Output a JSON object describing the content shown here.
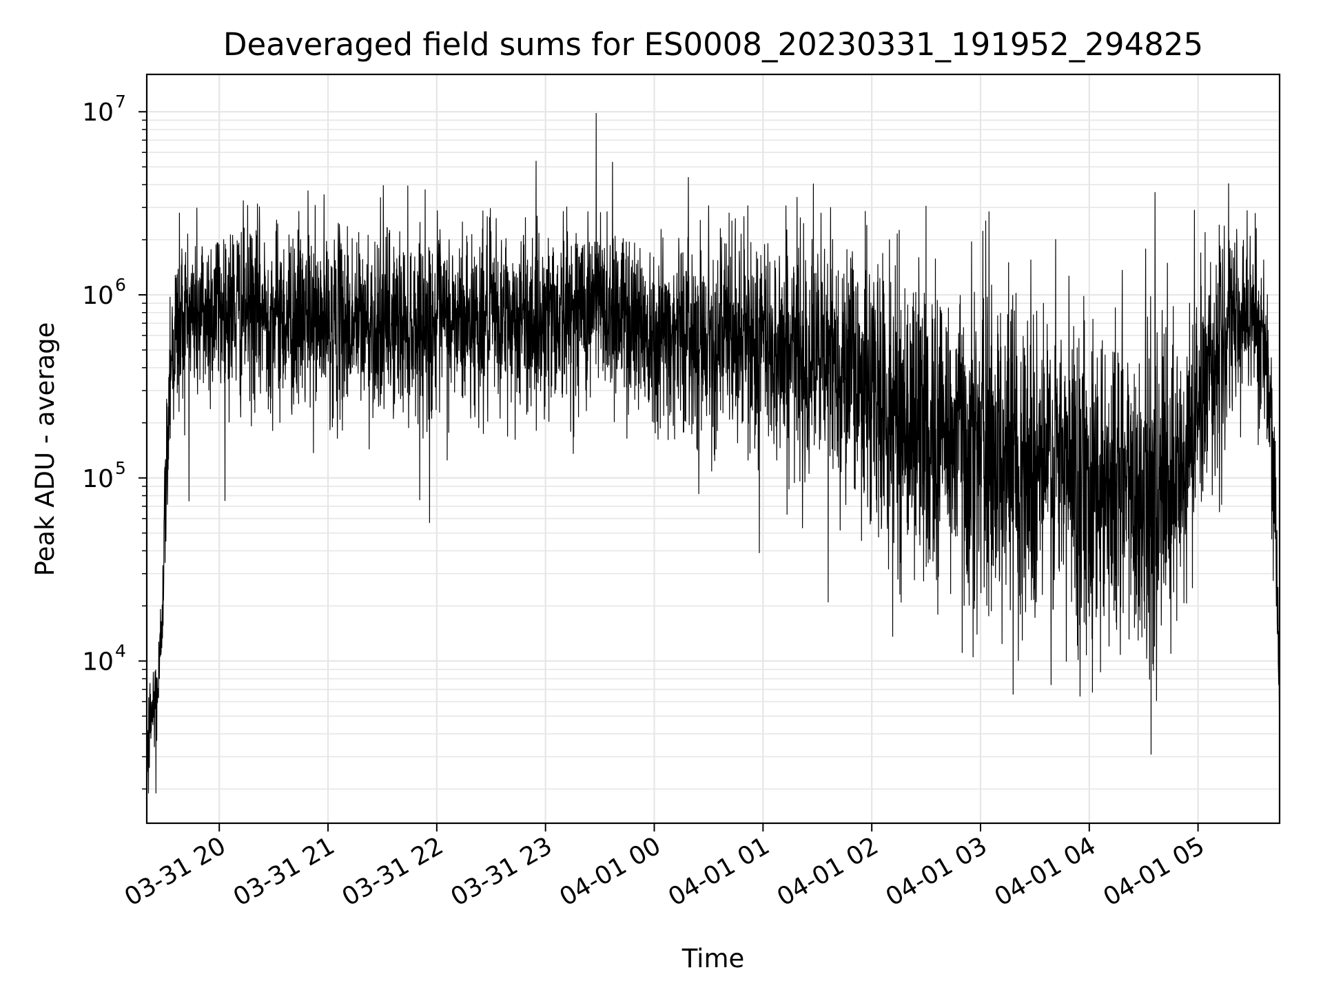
{
  "chart_data": {
    "type": "line",
    "title": "Deaveraged field sums for ES0008_20230331_191952_294825",
    "xlabel": "Time",
    "ylabel": "Peak ADU - average",
    "yscale": "log",
    "ylim": [
      1300,
      16000000
    ],
    "xlim": [
      "2023-03-31 19:20",
      "2023-04-01 05:45"
    ],
    "grid": true,
    "line_color": "#000000",
    "grid_color": "#e6e6e6",
    "y_ticks": [
      {
        "base": "10",
        "exp": "4",
        "value": 10000
      },
      {
        "base": "10",
        "exp": "5",
        "value": 100000
      },
      {
        "base": "10",
        "exp": "6",
        "value": 1000000
      },
      {
        "base": "10",
        "exp": "7",
        "value": 10000000
      }
    ],
    "x_ticks": [
      {
        "label": "03-31 20",
        "value": "2023-03-31 20:00"
      },
      {
        "label": "03-31 21",
        "value": "2023-03-31 21:00"
      },
      {
        "label": "03-31 22",
        "value": "2023-03-31 22:00"
      },
      {
        "label": "03-31 23",
        "value": "2023-03-31 23:00"
      },
      {
        "label": "04-01 00",
        "value": "2023-04-01 00:00"
      },
      {
        "label": "04-01 01",
        "value": "2023-04-01 01:00"
      },
      {
        "label": "04-01 02",
        "value": "2023-04-01 02:00"
      },
      {
        "label": "04-01 03",
        "value": "2023-04-01 03:00"
      },
      {
        "label": "04-01 04",
        "value": "2023-04-01 04:00"
      },
      {
        "label": "04-01 05",
        "value": "2023-04-01 05:00"
      }
    ],
    "series": [
      {
        "trend": [
          {
            "x": "2023-03-31 19:20",
            "median": 3500,
            "spread": 0.15
          },
          {
            "x": "2023-03-31 19:24",
            "median": 6000,
            "spread": 0.15
          },
          {
            "x": "2023-03-31 19:27",
            "median": 8000,
            "spread": 0.15
          },
          {
            "x": "2023-03-31 19:30",
            "median": 60000,
            "spread": 0.2
          },
          {
            "x": "2023-03-31 19:33",
            "median": 500000,
            "spread": 0.25
          },
          {
            "x": "2023-03-31 19:40",
            "median": 750000,
            "spread": 0.25
          },
          {
            "x": "2023-03-31 20:00",
            "median": 850000,
            "spread": 0.25
          },
          {
            "x": "2023-03-31 21:00",
            "median": 700000,
            "spread": 0.25
          },
          {
            "x": "2023-03-31 22:00",
            "median": 700000,
            "spread": 0.25
          },
          {
            "x": "2023-03-31 23:00",
            "median": 750000,
            "spread": 0.25
          },
          {
            "x": "2023-03-31 23:30",
            "median": 900000,
            "spread": 0.25
          },
          {
            "x": "2023-04-01 00:00",
            "median": 650000,
            "spread": 0.25
          },
          {
            "x": "2023-04-01 01:00",
            "median": 550000,
            "spread": 0.3
          },
          {
            "x": "2023-04-01 01:50",
            "median": 400000,
            "spread": 0.35
          },
          {
            "x": "2023-04-01 02:10",
            "median": 220000,
            "spread": 0.4
          },
          {
            "x": "2023-04-01 03:00",
            "median": 150000,
            "spread": 0.45
          },
          {
            "x": "2023-04-01 04:00",
            "median": 100000,
            "spread": 0.45
          },
          {
            "x": "2023-04-01 04:50",
            "median": 80000,
            "spread": 0.45
          },
          {
            "x": "2023-04-01 05:05",
            "median": 400000,
            "spread": 0.3
          },
          {
            "x": "2023-04-01 05:30",
            "median": 900000,
            "spread": 0.25
          },
          {
            "x": "2023-04-01 05:38",
            "median": 400000,
            "spread": 0.25
          },
          {
            "x": "2023-04-01 05:43",
            "median": 50000,
            "spread": 0.2
          },
          {
            "x": "2023-04-01 05:45",
            "median": 5500,
            "spread": 0.1
          }
        ],
        "peaks": [
          {
            "x": "2023-03-31 19:21",
            "y": 1900
          },
          {
            "x": "2023-03-31 19:25",
            "y": 1900
          },
          {
            "x": "2023-03-31 19:38",
            "y": 2800000
          },
          {
            "x": "2023-03-31 20:49",
            "y": 3700000
          },
          {
            "x": "2023-03-31 21:29",
            "y": 3400000
          },
          {
            "x": "2023-03-31 23:28",
            "y": 9800000
          },
          {
            "x": "2023-03-31 23:37",
            "y": 5300000
          },
          {
            "x": "2023-04-01 02:26",
            "y": 1600000
          },
          {
            "x": "2023-04-01 04:58",
            "y": 2900000
          },
          {
            "x": "2023-03-31 21:56",
            "y": 57000
          },
          {
            "x": "2023-04-01 00:58",
            "y": 39000
          },
          {
            "x": "2023-04-01 01:36",
            "y": 21000
          },
          {
            "x": "2023-04-01 02:58",
            "y": 14000
          },
          {
            "x": "2023-04-01 03:23",
            "y": 13000
          },
          {
            "x": "2023-04-01 04:27",
            "y": 13000
          },
          {
            "x": "2023-04-01 04:45",
            "y": 11000
          }
        ]
      }
    ]
  }
}
